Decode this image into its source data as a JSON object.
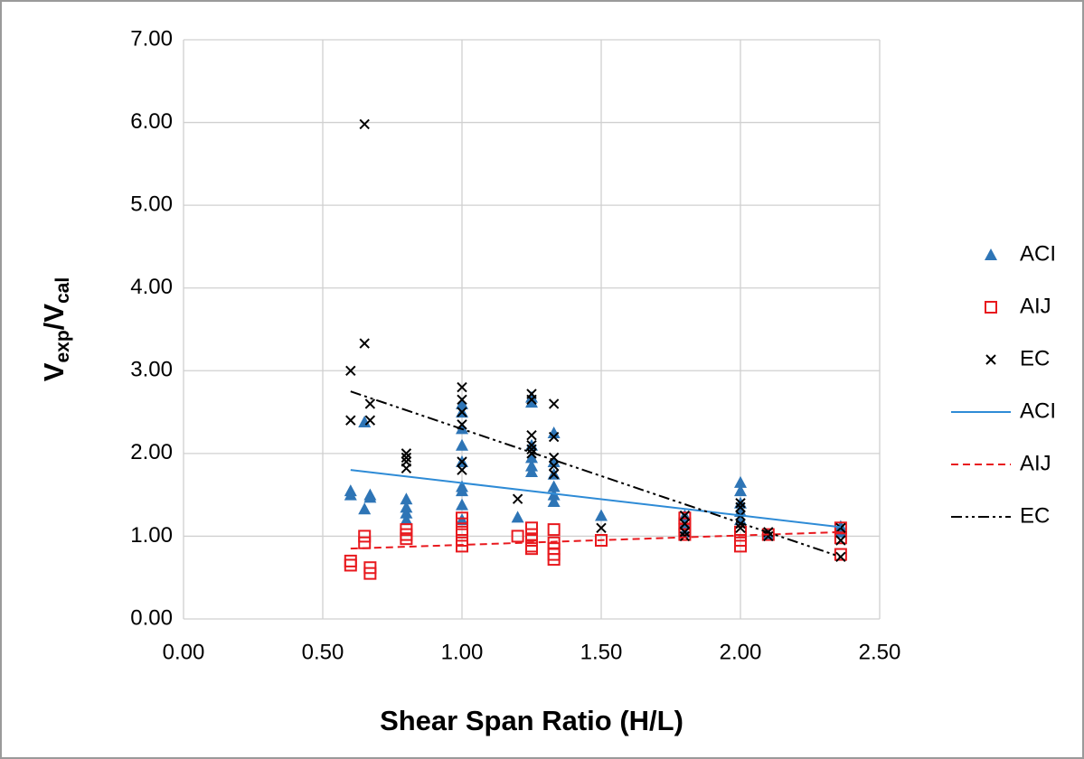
{
  "chart_data": {
    "type": "scatter",
    "xlabel": "Shear Span Ratio (H/L)",
    "ylabel": [
      "V",
      "exp",
      "/V",
      "cal"
    ],
    "xlim": [
      0,
      2.5
    ],
    "ylim": [
      0,
      7
    ],
    "xticks": [
      {
        "value": 0,
        "label": "0.00"
      },
      {
        "value": 0.5,
        "label": "0.50"
      },
      {
        "value": 1,
        "label": "1.00"
      },
      {
        "value": 1.5,
        "label": "1.50"
      },
      {
        "value": 2,
        "label": "2.00"
      },
      {
        "value": 2.5,
        "label": "2.50"
      }
    ],
    "yticks": [
      {
        "value": 0,
        "label": "0.00"
      },
      {
        "value": 1,
        "label": "1.00"
      },
      {
        "value": 2,
        "label": "2.00"
      },
      {
        "value": 3,
        "label": "3.00"
      },
      {
        "value": 4,
        "label": "4.00"
      },
      {
        "value": 5,
        "label": "5.00"
      },
      {
        "value": 6,
        "label": "6.00"
      },
      {
        "value": 7,
        "label": "7.00"
      }
    ],
    "grid": true,
    "legend": "right",
    "series": [
      {
        "name": "ACI",
        "color": "#2e75b6",
        "marker": "triangle",
        "x": [
          0.6,
          0.6,
          0.65,
          0.65,
          0.67,
          0.67,
          0.8,
          0.8,
          0.8,
          0.8,
          1,
          1,
          1,
          1,
          1,
          1,
          1,
          1,
          1,
          1.2,
          1.25,
          1.25,
          1.25,
          1.25,
          1.25,
          1.25,
          1.33,
          1.33,
          1.33,
          1.33,
          1.33,
          1.33,
          1.5,
          1.8,
          1.8,
          1.8,
          2,
          2,
          2,
          2,
          2,
          2.1,
          2.36,
          2.36
        ],
        "values": [
          1.55,
          1.5,
          2.38,
          1.33,
          1.5,
          1.47,
          1.45,
          1.35,
          1.28,
          1.2,
          2.6,
          2.5,
          2.3,
          2.1,
          1.9,
          1.6,
          1.55,
          1.38,
          1.2,
          1.23,
          2.68,
          2.62,
          2.1,
          1.95,
          1.85,
          1.78,
          2.25,
          1.9,
          1.75,
          1.6,
          1.5,
          1.42,
          1.25,
          1.25,
          1.15,
          1.05,
          1.65,
          1.55,
          1.4,
          1.3,
          1.2,
          1.02,
          1.12,
          1.05
        ]
      },
      {
        "name": "AIJ",
        "color": "#e8191e",
        "marker": "square",
        "x": [
          0.6,
          0.6,
          0.65,
          0.65,
          0.67,
          0.67,
          0.8,
          0.8,
          0.8,
          1,
          1,
          1,
          1,
          1,
          1.2,
          1.25,
          1.25,
          1.25,
          1.25,
          1.25,
          1.33,
          1.33,
          1.33,
          1.33,
          1.33,
          1.5,
          1.8,
          1.8,
          1.8,
          1.8,
          2,
          2,
          2,
          2.1,
          2.36,
          2.36,
          2.36
        ],
        "values": [
          0.7,
          0.65,
          1,
          0.92,
          0.62,
          0.55,
          1.08,
          1.02,
          0.97,
          1.22,
          1.15,
          1.05,
          0.95,
          0.88,
          1,
          1.1,
          1.02,
          0.95,
          0.88,
          0.85,
          1.08,
          0.92,
          0.85,
          0.78,
          0.72,
          0.95,
          1.22,
          1.15,
          1.08,
          1.02,
          1.05,
          0.95,
          0.88,
          1.02,
          1.1,
          0.98,
          0.78
        ]
      },
      {
        "name": "EC",
        "color": "#000000",
        "marker": "x",
        "x": [
          0.6,
          0.6,
          0.65,
          0.65,
          0.67,
          0.67,
          0.8,
          0.8,
          0.8,
          0.8,
          1,
          1,
          1,
          1,
          1,
          1,
          1.2,
          1.25,
          1.25,
          1.25,
          1.25,
          1.25,
          1.25,
          1.33,
          1.33,
          1.33,
          1.33,
          1.33,
          1.5,
          1.8,
          1.8,
          1.8,
          1.8,
          2,
          2,
          2,
          2,
          2,
          2.1,
          2.1,
          2.36,
          2.36,
          2.36
        ],
        "values": [
          3,
          2.4,
          5.98,
          3.33,
          2.6,
          2.4,
          2,
          1.95,
          1.9,
          1.82,
          2.8,
          2.65,
          2.5,
          2.35,
          1.9,
          1.8,
          1.45,
          2.72,
          2.65,
          2.22,
          2.1,
          2.05,
          2,
          2.6,
          2.2,
          1.95,
          1.85,
          1.75,
          1.1,
          1.25,
          1.15,
          1.05,
          1,
          1.4,
          1.35,
          1.25,
          1.15,
          1.1,
          1.05,
          1,
          1.1,
          0.95,
          0.75
        ]
      },
      {
        "name": "ACI",
        "color": "#2e8bd6",
        "line_style": "solid",
        "x": [
          0.6,
          2.36
        ],
        "values": [
          1.8,
          1.11
        ]
      },
      {
        "name": "AIJ",
        "color": "#e8191e",
        "line_style": "dashed",
        "x": [
          0.6,
          2.36
        ],
        "values": [
          0.85,
          1.05
        ]
      },
      {
        "name": "EC",
        "color": "#000000",
        "line_style": "dashdot",
        "x": [
          0.6,
          2.36
        ],
        "values": [
          2.75,
          0.75
        ]
      }
    ]
  }
}
